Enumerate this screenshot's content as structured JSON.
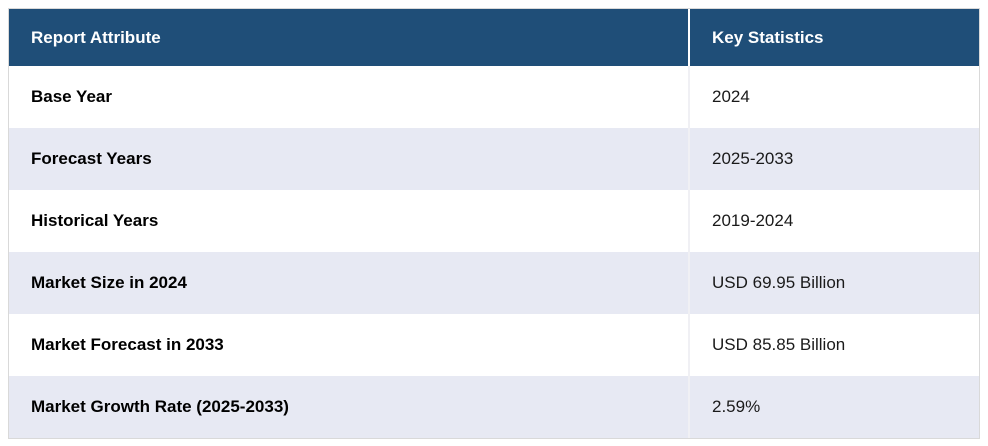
{
  "table": {
    "columns": [
      {
        "label": "Report Attribute"
      },
      {
        "label": "Key Statistics"
      }
    ],
    "rows": [
      {
        "attribute": "Base Year",
        "value": "2024"
      },
      {
        "attribute": "Forecast Years",
        "value": "2025-2033"
      },
      {
        "attribute": "Historical Years",
        "value": "2019-2024"
      },
      {
        "attribute": "Market Size in 2024",
        "value": "USD 69.95 Billion"
      },
      {
        "attribute": "Market Forecast in 2033",
        "value": "USD 85.85 Billion"
      },
      {
        "attribute": "Market Growth Rate (2025-2033)",
        "value": "2.59%"
      }
    ],
    "colors": {
      "header_bg": "#1f4e78",
      "header_text": "#ffffff",
      "row_bg": "#ffffff",
      "row_alt_bg": "#e7e9f3",
      "border": "#d9d9d9",
      "label_text": "#000000",
      "value_text": "#1a1a1a"
    }
  }
}
